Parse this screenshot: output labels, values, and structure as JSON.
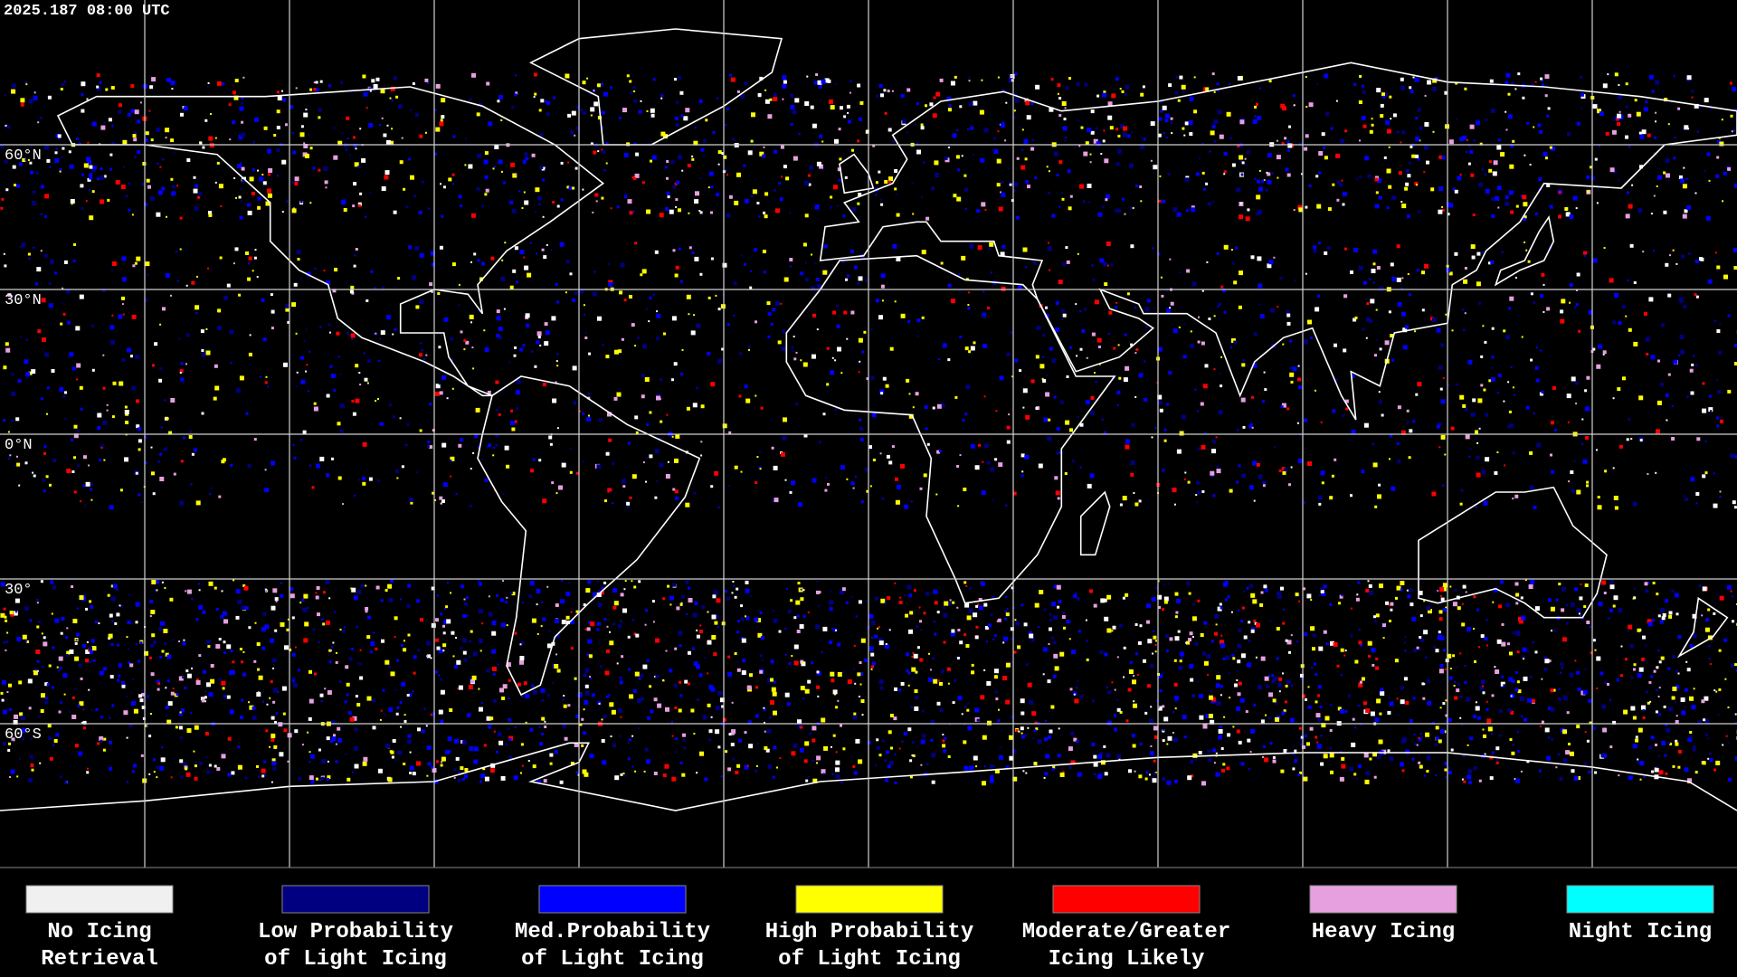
{
  "header": {
    "timestamp": "2025.187 08:00 UTC"
  },
  "map": {
    "lat_labels": [
      "60°N",
      "30°N",
      "0°N",
      "30°",
      "60°S"
    ]
  },
  "legend": {
    "items": [
      {
        "lines": [
          "No Icing",
          "Retrieval"
        ],
        "color": "#f0f0f0"
      },
      {
        "lines": [
          "Low Probability",
          "of Light Icing"
        ],
        "color": "#000080"
      },
      {
        "lines": [
          "Med.Probability",
          "of Light Icing"
        ],
        "color": "#0000ff"
      },
      {
        "lines": [
          "High Probability",
          "of Light Icing"
        ],
        "color": "#ffff00"
      },
      {
        "lines": [
          "Moderate/Greater",
          "Icing Likely"
        ],
        "color": "#ff0000"
      },
      {
        "lines": [
          "Heavy Icing"
        ],
        "color": "#e6a0e0"
      },
      {
        "lines": [
          "Night Icing"
        ],
        "color": "#00ffff"
      }
    ]
  }
}
